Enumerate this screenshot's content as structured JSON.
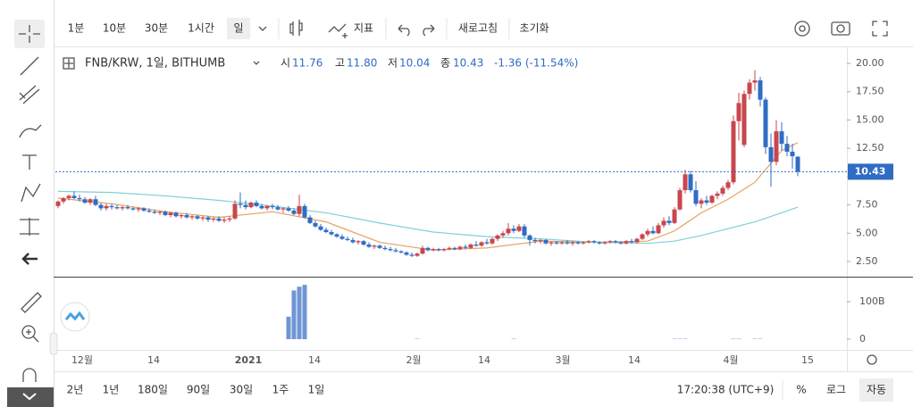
{
  "toolbar": {
    "intervals": [
      "1분",
      "10분",
      "30분",
      "1시간",
      "일"
    ],
    "indicators": "지표",
    "refresh": "새로고침",
    "reset": "초기화"
  },
  "legend": {
    "symbol": "FNB/KRW, 1일, BITHUMB",
    "open_label": "시",
    "open": "11.76",
    "high_label": "고",
    "high": "11.80",
    "low_label": "저",
    "low": "10.04",
    "close_label": "종",
    "close": "10.43",
    "change": "-1.36 (-11.54%)"
  },
  "chart_data": {
    "type": "candlestick",
    "ylim": [
      1.16,
      21.5
    ],
    "yticks": [
      {
        "value": 2.5,
        "label": "2.50"
      },
      {
        "value": 5,
        "label": "5.00"
      },
      {
        "value": 7.5,
        "label": "7.50"
      },
      {
        "value": 10,
        "label": "10.00"
      },
      {
        "value": 12.5,
        "label": "12.50"
      },
      {
        "value": 15,
        "label": "15.00"
      },
      {
        "value": 17.5,
        "label": "17.50"
      },
      {
        "value": 20,
        "label": "20.00"
      }
    ],
    "last_price": {
      "value": 10.43,
      "label": "10.43"
    },
    "up_color": "#c7474d",
    "down_color": "#2f6cc4",
    "candles": [
      [
        7.4,
        7.9,
        7.2,
        7.8
      ],
      [
        7.8,
        8.2,
        7.6,
        8.1
      ],
      [
        8.1,
        8.4,
        7.9,
        8.3
      ],
      [
        8.3,
        8.7,
        8.0,
        8.1
      ],
      [
        8.1,
        8.4,
        7.8,
        8.0
      ],
      [
        8.0,
        8.2,
        7.6,
        7.7
      ],
      [
        7.7,
        8.1,
        7.5,
        8.0
      ],
      [
        8.0,
        8.3,
        7.4,
        7.5
      ],
      [
        7.5,
        7.7,
        7.0,
        7.2
      ],
      [
        7.2,
        7.6,
        7.0,
        7.4
      ],
      [
        7.4,
        7.6,
        7.1,
        7.3
      ],
      [
        7.3,
        7.5,
        7.1,
        7.2
      ],
      [
        7.2,
        7.4,
        7.0,
        7.3
      ],
      [
        7.3,
        7.5,
        7.1,
        7.2
      ],
      [
        7.2,
        7.3,
        7.0,
        7.1
      ],
      [
        7.1,
        7.3,
        6.9,
        7.2
      ],
      [
        7.2,
        7.3,
        6.9,
        7.0
      ],
      [
        7.0,
        7.2,
        6.8,
        6.9
      ],
      [
        6.9,
        7.1,
        6.7,
        6.8
      ],
      [
        6.8,
        7.0,
        6.6,
        6.9
      ],
      [
        6.9,
        7.0,
        6.5,
        6.6
      ],
      [
        6.6,
        6.9,
        6.4,
        6.8
      ],
      [
        6.8,
        6.9,
        6.4,
        6.5
      ],
      [
        6.5,
        6.7,
        6.3,
        6.6
      ],
      [
        6.6,
        6.8,
        6.3,
        6.4
      ],
      [
        6.4,
        6.6,
        6.2,
        6.5
      ],
      [
        6.5,
        6.6,
        6.2,
        6.3
      ],
      [
        6.3,
        6.5,
        6.1,
        6.4
      ],
      [
        6.4,
        6.5,
        6.0,
        6.2
      ],
      [
        6.2,
        6.4,
        6.0,
        6.3
      ],
      [
        6.3,
        6.5,
        6.0,
        6.1
      ],
      [
        6.1,
        6.4,
        5.9,
        6.2
      ],
      [
        6.2,
        6.5,
        6.0,
        6.3
      ],
      [
        6.3,
        7.9,
        6.2,
        7.6
      ],
      [
        7.6,
        8.6,
        7.2,
        7.5
      ],
      [
        7.5,
        7.9,
        7.1,
        7.3
      ],
      [
        7.3,
        7.8,
        7.2,
        7.7
      ],
      [
        7.7,
        7.9,
        7.3,
        7.4
      ],
      [
        7.4,
        7.6,
        7.1,
        7.2
      ],
      [
        7.2,
        7.5,
        7.0,
        7.4
      ],
      [
        7.4,
        7.6,
        7.1,
        7.3
      ],
      [
        7.3,
        7.5,
        7.0,
        7.1
      ],
      [
        7.1,
        7.3,
        6.8,
        7.2
      ],
      [
        7.2,
        7.4,
        6.9,
        7.0
      ],
      [
        7.0,
        7.2,
        6.6,
        6.7
      ],
      [
        6.7,
        8.4,
        6.5,
        7.4
      ],
      [
        7.4,
        7.6,
        6.3,
        6.4
      ],
      [
        6.4,
        6.6,
        5.8,
        5.9
      ],
      [
        5.9,
        6.1,
        5.5,
        5.6
      ],
      [
        5.6,
        5.8,
        5.2,
        5.3
      ],
      [
        5.3,
        5.5,
        5.0,
        5.1
      ],
      [
        5.1,
        5.3,
        4.8,
        4.9
      ],
      [
        4.9,
        5.0,
        4.6,
        4.7
      ],
      [
        4.7,
        4.9,
        4.4,
        4.5
      ],
      [
        4.5,
        4.7,
        4.3,
        4.4
      ],
      [
        4.4,
        4.6,
        4.1,
        4.2
      ],
      [
        4.2,
        4.4,
        4.0,
        4.3
      ],
      [
        4.3,
        4.4,
        3.9,
        4.0
      ],
      [
        4.0,
        4.2,
        3.7,
        3.8
      ],
      [
        3.8,
        4.0,
        3.6,
        3.9
      ],
      [
        3.9,
        4.0,
        3.6,
        3.7
      ],
      [
        3.7,
        3.9,
        3.5,
        3.6
      ],
      [
        3.6,
        3.8,
        3.4,
        3.5
      ],
      [
        3.5,
        3.7,
        3.3,
        3.4
      ],
      [
        3.4,
        3.5,
        3.2,
        3.3
      ],
      [
        3.3,
        3.4,
        3.0,
        3.1
      ],
      [
        3.1,
        3.3,
        2.9,
        3.0
      ],
      [
        3.0,
        3.3,
        2.9,
        3.2
      ],
      [
        3.2,
        3.9,
        3.1,
        3.7
      ],
      [
        3.7,
        3.8,
        3.4,
        3.5
      ],
      [
        3.5,
        3.7,
        3.4,
        3.6
      ],
      [
        3.6,
        3.7,
        3.4,
        3.5
      ],
      [
        3.5,
        3.7,
        3.4,
        3.6
      ],
      [
        3.6,
        3.8,
        3.5,
        3.7
      ],
      [
        3.7,
        3.8,
        3.5,
        3.6
      ],
      [
        3.6,
        3.9,
        3.5,
        3.8
      ],
      [
        3.8,
        4.0,
        3.6,
        3.7
      ],
      [
        3.7,
        4.1,
        3.6,
        4.0
      ],
      [
        4.0,
        4.3,
        3.8,
        3.9
      ],
      [
        3.9,
        4.3,
        3.8,
        4.2
      ],
      [
        4.2,
        4.5,
        4.0,
        4.1
      ],
      [
        4.1,
        4.6,
        4.0,
        4.5
      ],
      [
        4.5,
        4.9,
        4.3,
        4.8
      ],
      [
        4.8,
        5.2,
        4.6,
        5.0
      ],
      [
        5.0,
        5.9,
        4.8,
        5.4
      ],
      [
        5.4,
        5.7,
        5.0,
        5.2
      ],
      [
        5.2,
        5.8,
        5.1,
        5.6
      ],
      [
        5.6,
        5.8,
        4.6,
        4.8
      ],
      [
        4.8,
        4.9,
        3.9,
        4.4
      ],
      [
        4.4,
        4.6,
        4.1,
        4.3
      ],
      [
        4.3,
        4.5,
        4.1,
        4.4
      ],
      [
        4.4,
        4.5,
        4.0,
        4.1
      ],
      [
        4.1,
        4.3,
        3.9,
        4.2
      ],
      [
        4.2,
        4.3,
        4.0,
        4.1
      ],
      [
        4.1,
        4.3,
        4.0,
        4.2
      ],
      [
        4.2,
        4.4,
        4.0,
        4.1
      ],
      [
        4.1,
        4.3,
        3.9,
        4.2
      ],
      [
        4.2,
        4.3,
        4.0,
        4.1
      ],
      [
        4.1,
        4.3,
        4.0,
        4.2
      ],
      [
        4.2,
        4.4,
        4.1,
        4.3
      ],
      [
        4.3,
        4.4,
        4.1,
        4.2
      ],
      [
        4.2,
        4.3,
        4.0,
        4.1
      ],
      [
        4.1,
        4.3,
        4.0,
        4.2
      ],
      [
        4.2,
        4.4,
        4.1,
        4.3
      ],
      [
        4.3,
        4.4,
        4.1,
        4.2
      ],
      [
        4.2,
        4.3,
        4.0,
        4.1
      ],
      [
        4.1,
        4.4,
        4.0,
        4.3
      ],
      [
        4.3,
        4.5,
        4.1,
        4.2
      ],
      [
        4.2,
        4.6,
        4.1,
        4.5
      ],
      [
        4.5,
        5.0,
        4.4,
        4.9
      ],
      [
        4.9,
        5.4,
        4.7,
        5.2
      ],
      [
        5.2,
        5.6,
        4.9,
        5.0
      ],
      [
        5.0,
        5.9,
        4.9,
        5.7
      ],
      [
        5.7,
        6.4,
        5.5,
        6.1
      ],
      [
        6.1,
        6.5,
        5.7,
        5.9
      ],
      [
        5.9,
        7.3,
        5.8,
        7.1
      ],
      [
        7.1,
        9.0,
        7.0,
        8.8
      ],
      [
        8.8,
        10.6,
        8.5,
        10.2
      ],
      [
        10.2,
        10.5,
        8.6,
        8.8
      ],
      [
        8.8,
        9.6,
        7.4,
        7.6
      ],
      [
        7.6,
        8.1,
        7.2,
        7.9
      ],
      [
        7.9,
        8.3,
        7.5,
        7.7
      ],
      [
        7.7,
        8.4,
        7.6,
        8.3
      ],
      [
        8.3,
        8.7,
        8.0,
        8.5
      ],
      [
        8.5,
        9.2,
        8.3,
        9.0
      ],
      [
        9.0,
        9.7,
        8.8,
        9.5
      ],
      [
        9.5,
        15.4,
        9.3,
        14.9
      ],
      [
        14.9,
        17.4,
        13.2,
        16.5
      ],
      [
        12.8,
        17.6,
        12.6,
        17.3
      ],
      [
        17.3,
        18.6,
        16.8,
        18.3
      ],
      [
        18.3,
        19.4,
        17.6,
        18.5
      ],
      [
        18.5,
        18.8,
        16.2,
        16.8
      ],
      [
        16.8,
        17.0,
        12.0,
        12.6
      ],
      [
        12.6,
        13.8,
        9.1,
        11.3
      ],
      [
        11.3,
        15.0,
        11.0,
        14.0
      ],
      [
        14.0,
        14.8,
        12.3,
        12.9
      ],
      [
        12.9,
        13.6,
        11.8,
        12.2
      ],
      [
        12.2,
        12.9,
        10.7,
        11.8
      ],
      [
        11.76,
        11.8,
        10.04,
        10.43
      ]
    ],
    "moving_averages": [
      {
        "color": "#e8a060",
        "x": [
          0,
          10,
          20,
          30,
          40,
          50,
          60,
          70,
          80,
          90,
          100,
          110,
          115,
          120,
          125,
          130,
          135,
          138
        ],
        "values": [
          8.1,
          7.6,
          6.9,
          6.4,
          6.9,
          6.0,
          4.2,
          3.5,
          3.7,
          4.3,
          4.2,
          4.3,
          5.2,
          6.8,
          8.0,
          9.5,
          12.3,
          13.0
        ]
      },
      {
        "color": "#7fd0d8",
        "x": [
          0,
          10,
          20,
          30,
          40,
          50,
          60,
          70,
          80,
          90,
          100,
          110,
          115,
          120,
          125,
          130,
          135,
          138
        ],
        "values": [
          8.7,
          8.6,
          8.3,
          7.9,
          7.4,
          6.8,
          5.9,
          5.1,
          4.7,
          4.5,
          4.2,
          4.1,
          4.3,
          4.8,
          5.4,
          6.0,
          6.8,
          7.3
        ]
      }
    ],
    "volume": {
      "color": "#6f95d6",
      "ylim": [
        0,
        162
      ],
      "yticks": [
        0,
        {
          "value": 100,
          "label": "100B"
        }
      ],
      "x": [
        43,
        44,
        45,
        46,
        67,
        85,
        115,
        116,
        117,
        126,
        127,
        130,
        131
      ],
      "values": [
        60,
        130,
        140,
        145,
        1,
        1,
        1,
        1,
        1,
        1,
        1,
        1,
        1
      ]
    },
    "x_labels": [
      "12월",
      "14",
      "2021",
      "14",
      "2월",
      "14",
      "3월",
      "14",
      "4월",
      "15"
    ]
  },
  "bottom": {
    "ranges": [
      "2년",
      "1년",
      "180일",
      "90일",
      "30일",
      "1주",
      "1일"
    ],
    "clock": "17:20:38 (UTC+9)",
    "percent": "%",
    "log": "로그",
    "auto": "자동"
  }
}
